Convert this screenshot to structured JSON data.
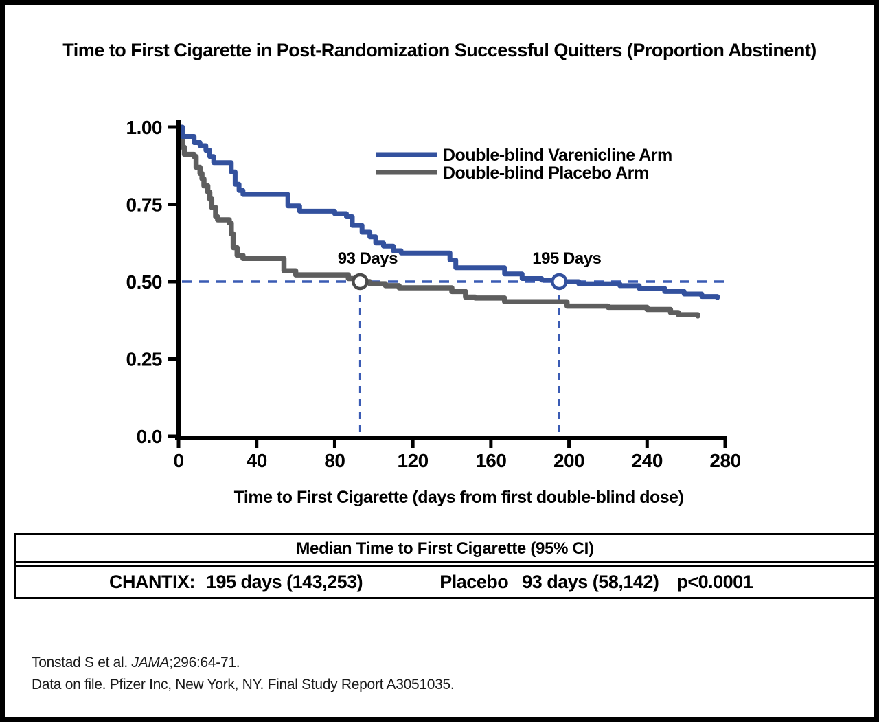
{
  "title": "Time to First Cigarette in Post-Randomization Successful Quitters (Proportion Abstinent)",
  "chart_data": {
    "type": "line",
    "subtype": "kaplan-meier-step",
    "title": "Time to First Cigarette in Post-Randomization Successful Quitters (Proportion Abstinent)",
    "xlabel": "Time to First Cigarette (days from first double-blind dose)",
    "ylabel": "Proportion Abstinent",
    "xlim": [
      0,
      280
    ],
    "ylim": [
      0.0,
      1.0
    ],
    "grid": false,
    "legend_position": "upper-right-inside",
    "x_ticks": [
      0,
      40,
      80,
      120,
      160,
      200,
      240,
      280
    ],
    "x_tick_labels": [
      "0",
      "40",
      "80",
      "120",
      "160",
      "200",
      "240",
      "280"
    ],
    "y_ticks": [
      1.0,
      0.75,
      0.5,
      0.25,
      0.0
    ],
    "y_tick_labels": [
      "1.00",
      "0.75",
      "0.50",
      "0.25",
      "0.0"
    ],
    "series": [
      {
        "name": "Double-blind Placebo Arm",
        "color": "#5E5E5E",
        "median_days": 93,
        "points": [
          [
            0,
            1.0
          ],
          [
            1,
            0.965
          ],
          [
            2,
            0.935
          ],
          [
            3,
            0.912
          ],
          [
            8,
            0.905
          ],
          [
            9,
            0.87
          ],
          [
            11,
            0.85
          ],
          [
            12,
            0.833
          ],
          [
            13,
            0.81
          ],
          [
            15,
            0.79
          ],
          [
            16,
            0.767
          ],
          [
            17,
            0.74
          ],
          [
            19,
            0.71
          ],
          [
            20,
            0.7
          ],
          [
            26,
            0.69
          ],
          [
            27,
            0.655
          ],
          [
            28,
            0.61
          ],
          [
            30,
            0.585
          ],
          [
            33,
            0.575
          ],
          [
            54,
            0.535
          ],
          [
            60,
            0.522
          ],
          [
            87,
            0.51
          ],
          [
            93,
            0.5
          ],
          [
            98,
            0.493
          ],
          [
            106,
            0.487
          ],
          [
            113,
            0.48
          ],
          [
            140,
            0.468
          ],
          [
            147,
            0.45
          ],
          [
            152,
            0.447
          ],
          [
            167,
            0.435
          ],
          [
            199,
            0.421
          ],
          [
            220,
            0.417
          ],
          [
            240,
            0.41
          ],
          [
            252,
            0.4
          ],
          [
            256,
            0.393
          ],
          [
            266,
            0.389
          ]
        ]
      },
      {
        "name": "Double-blind Varenicline Arm",
        "color": "#33519E",
        "median_days": 195,
        "points": [
          [
            0,
            1.0
          ],
          [
            2,
            0.97
          ],
          [
            8,
            0.95
          ],
          [
            11,
            0.94
          ],
          [
            14,
            0.925
          ],
          [
            16,
            0.905
          ],
          [
            18,
            0.885
          ],
          [
            27,
            0.855
          ],
          [
            29,
            0.815
          ],
          [
            31,
            0.795
          ],
          [
            33,
            0.782
          ],
          [
            56,
            0.745
          ],
          [
            62,
            0.728
          ],
          [
            80,
            0.72
          ],
          [
            86,
            0.71
          ],
          [
            89,
            0.682
          ],
          [
            94,
            0.66
          ],
          [
            98,
            0.645
          ],
          [
            101,
            0.625
          ],
          [
            105,
            0.615
          ],
          [
            110,
            0.6
          ],
          [
            114,
            0.593
          ],
          [
            139,
            0.57
          ],
          [
            142,
            0.545
          ],
          [
            167,
            0.525
          ],
          [
            176,
            0.51
          ],
          [
            186,
            0.505
          ],
          [
            195,
            0.5
          ],
          [
            205,
            0.493
          ],
          [
            226,
            0.487
          ],
          [
            236,
            0.478
          ],
          [
            249,
            0.468
          ],
          [
            259,
            0.46
          ],
          [
            268,
            0.452
          ],
          [
            276,
            0.448
          ]
        ]
      }
    ],
    "legend_order": [
      1,
      0
    ],
    "reference_line": {
      "value": 0.5,
      "style": "dashed",
      "color": "#3A5BB4"
    },
    "annotations": [
      {
        "text": "93 Days",
        "day": 93,
        "value": 0.5,
        "series": "Double-blind Placebo Arm",
        "marker_color": "#4B4B4B"
      },
      {
        "text": "195 Days",
        "day": 195,
        "value": 0.5,
        "series": "Double-blind Varenicline Arm",
        "marker_color": "#33519E"
      }
    ]
  },
  "median_table": {
    "header": "Median Time to First Cigarette (95% CI)",
    "chantix_label": "CHANTIX:",
    "chantix_value": "195 days (143,253)",
    "placebo_label": "Placebo",
    "placebo_value": "93 days (58,142)",
    "p_value": "p<0.0001"
  },
  "footnotes": {
    "line1_prefix": "Tonstad S et al. ",
    "line1_journal": "JAMA",
    "line1_suffix": ";296:64-71.",
    "line2": "Data on file. Pfizer Inc, New York, NY. Final Study Report A3051035."
  },
  "colors": {
    "varenicline": "#33519E",
    "placebo": "#5E5E5E",
    "dashed_reference": "#3A5BB4",
    "axis": "#000000"
  }
}
